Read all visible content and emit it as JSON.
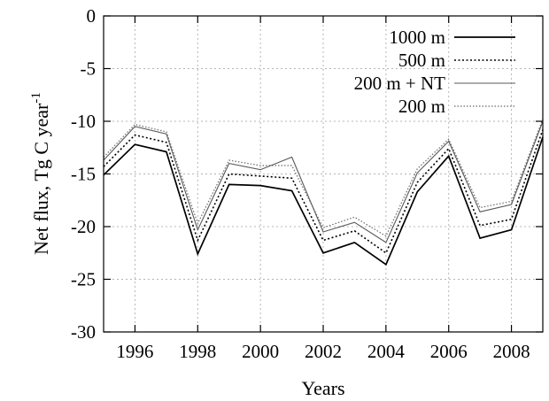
{
  "chart_data": {
    "type": "line",
    "xlabel": "Years",
    "ylabel": "Net flux, Tg C year",
    "ylabel_superscript": "-1",
    "xlim": [
      1995,
      2009
    ],
    "ylim": [
      -30,
      0
    ],
    "xticks": [
      1996,
      1998,
      2000,
      2002,
      2004,
      2006,
      2008
    ],
    "yticks": [
      0,
      -5,
      -10,
      -15,
      -20,
      -25,
      -30
    ],
    "grid": true,
    "legend_position": "top-right",
    "x": [
      1995,
      1996,
      1997,
      1998,
      1999,
      2000,
      2001,
      2002,
      2003,
      2004,
      2005,
      2006,
      2007,
      2008,
      2009
    ],
    "series": [
      {
        "name": "1000 m",
        "style": "solid",
        "color": "#000000",
        "values": [
          -15.1,
          -12.2,
          -12.9,
          -22.6,
          -16.0,
          -16.1,
          -16.6,
          -22.5,
          -21.5,
          -23.6,
          -16.7,
          -13.3,
          -21.1,
          -20.3,
          -11.5
        ]
      },
      {
        "name": "500 m",
        "style": "dotted",
        "color": "#000000",
        "values": [
          -14.3,
          -11.3,
          -12.0,
          -21.3,
          -15.0,
          -15.2,
          -15.4,
          -21.3,
          -20.4,
          -22.5,
          -15.8,
          -12.6,
          -19.9,
          -19.3,
          -10.8
        ]
      },
      {
        "name": "200 m + NT",
        "style": "solid-light",
        "color": "#5a5a5a",
        "values": [
          -13.7,
          -10.5,
          -11.2,
          -20.3,
          -14.0,
          -14.6,
          -13.4,
          -20.5,
          -19.6,
          -21.5,
          -14.9,
          -11.9,
          -18.6,
          -17.9,
          -10.0
        ]
      },
      {
        "name": "200 m",
        "style": "dotted-light",
        "color": "#6a6a6a",
        "values": [
          -13.4,
          -10.3,
          -11.0,
          -19.7,
          -13.7,
          -14.2,
          -14.2,
          -20.1,
          -19.1,
          -20.9,
          -14.5,
          -11.7,
          -18.2,
          -17.6,
          -9.8
        ]
      }
    ]
  }
}
